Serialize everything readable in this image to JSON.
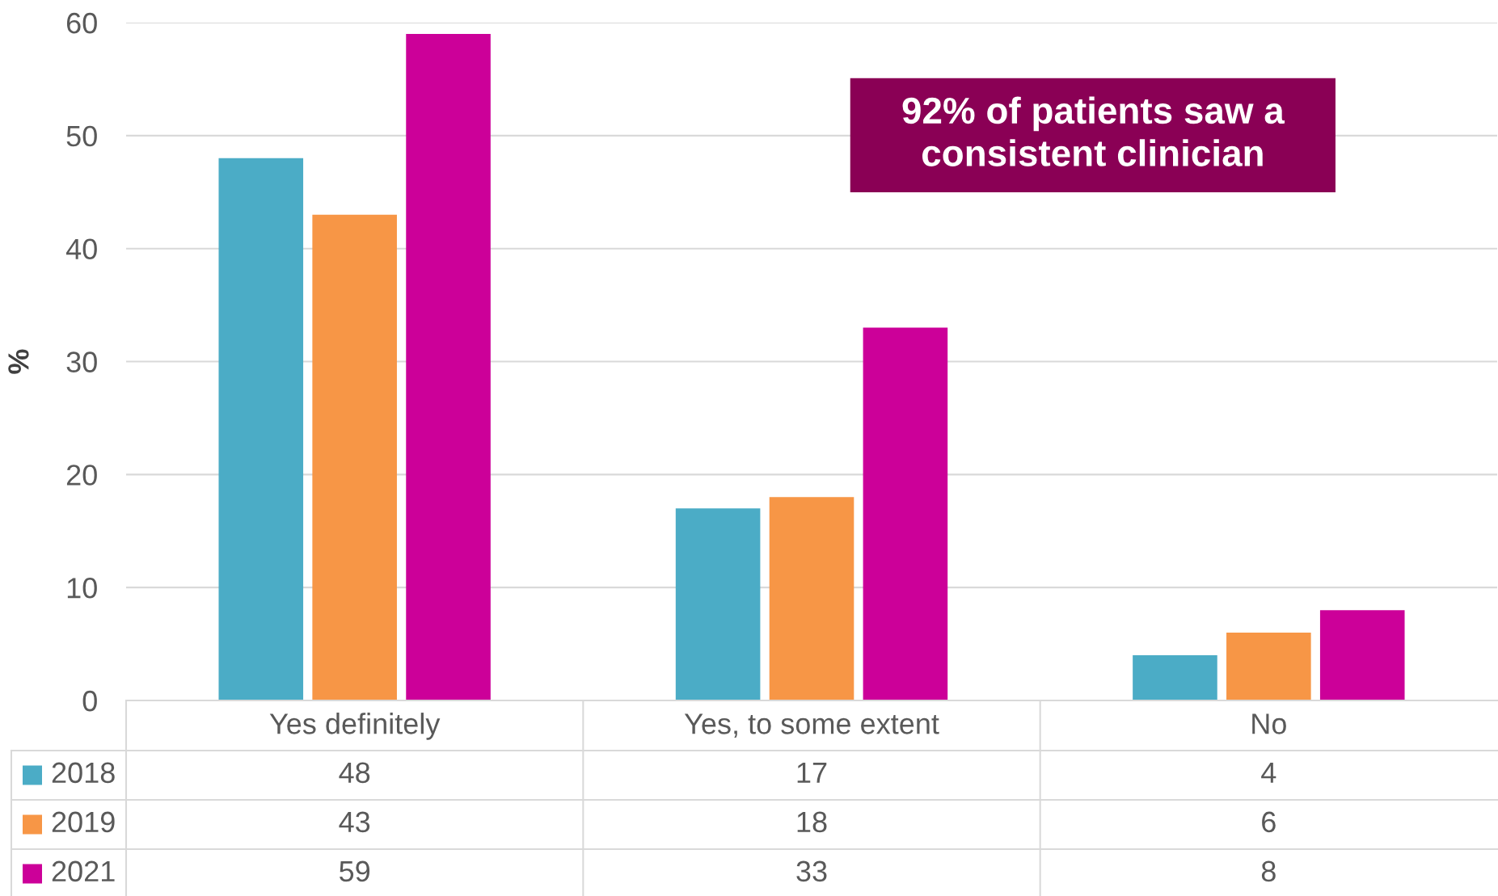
{
  "chart_data": {
    "type": "bar",
    "categories": [
      "Yes definitely",
      "Yes, to some extent",
      "No"
    ],
    "series": [
      {
        "name": "2018",
        "color": "#4bacc6",
        "values": [
          48,
          17,
          4
        ]
      },
      {
        "name": "2019",
        "color": "#f79646",
        "values": [
          43,
          18,
          6
        ]
      },
      {
        "name": "2021",
        "color": "#cc0099",
        "values": [
          59,
          33,
          8
        ]
      }
    ],
    "ylabel": "%",
    "ylim": [
      0,
      60
    ],
    "yticks": [
      0,
      10,
      20,
      30,
      40,
      50,
      60
    ],
    "grid": "y",
    "legend": "bottom",
    "data_labels": true,
    "annotations": [
      "92% of patients saw a\nconsistent clinician"
    ]
  }
}
